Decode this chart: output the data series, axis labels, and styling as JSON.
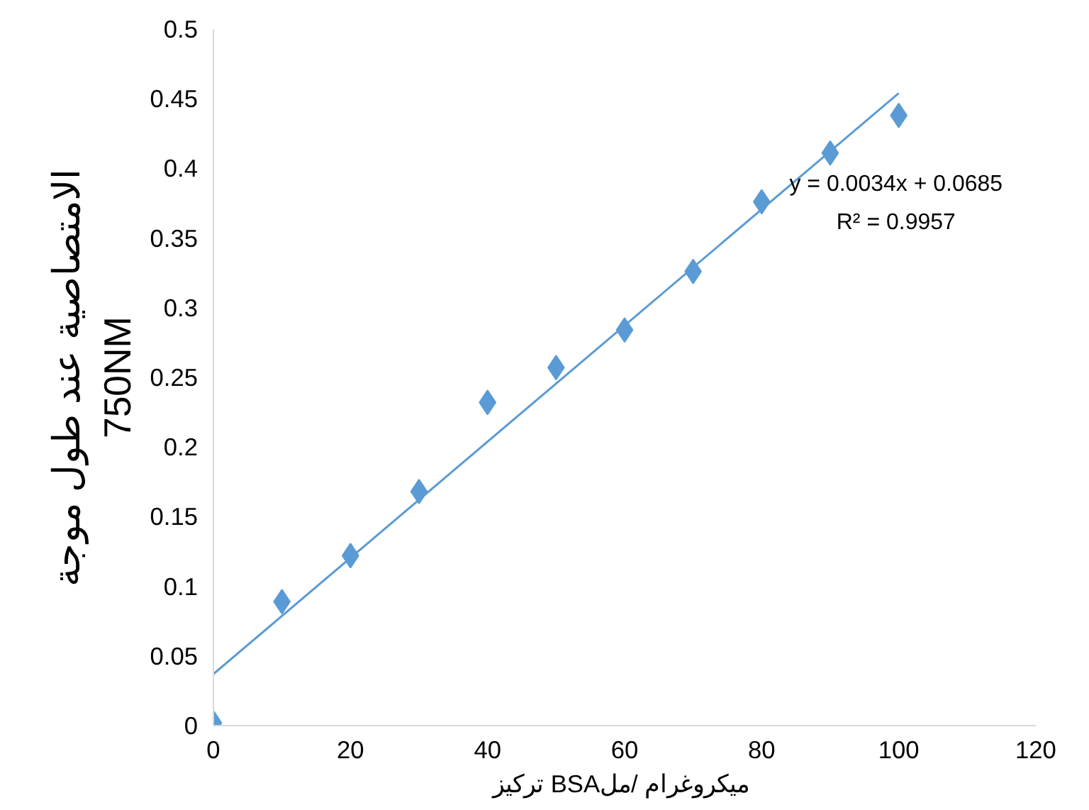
{
  "chart_data": {
    "type": "scatter",
    "xlabel": "تركيز  BSAميكروغرام /مل",
    "ylabel": "الامتصاصية عند طول موجة\n750NM",
    "x": [
      0,
      10,
      20,
      30,
      40,
      50,
      60,
      70,
      80,
      90,
      100
    ],
    "series": [
      {
        "color": "#5b9bd5",
        "marker": "diamond",
        "values": [
          0.002,
          0.089,
          0.122,
          0.168,
          0.232,
          0.257,
          0.284,
          0.326,
          0.376,
          0.411,
          0.438
        ]
      },
      {
        "type": "line",
        "color": "#5b9bd5",
        "x": [
          0,
          100
        ],
        "values": [
          0.037,
          0.454
        ],
        "line_style": "solid"
      }
    ],
    "annotations": [
      "y = 0.0034x + 0.0685",
      "R² = 0.9957"
    ],
    "xlim": [
      0,
      120
    ],
    "xticks": [
      0,
      20,
      40,
      60,
      80,
      100,
      120
    ],
    "ylim": [
      0,
      0.5
    ],
    "yticks": [
      0,
      0.05,
      0.1,
      0.15,
      0.2,
      0.25,
      0.3,
      0.35,
      0.4,
      0.45,
      0.5
    ],
    "grid": false
  }
}
